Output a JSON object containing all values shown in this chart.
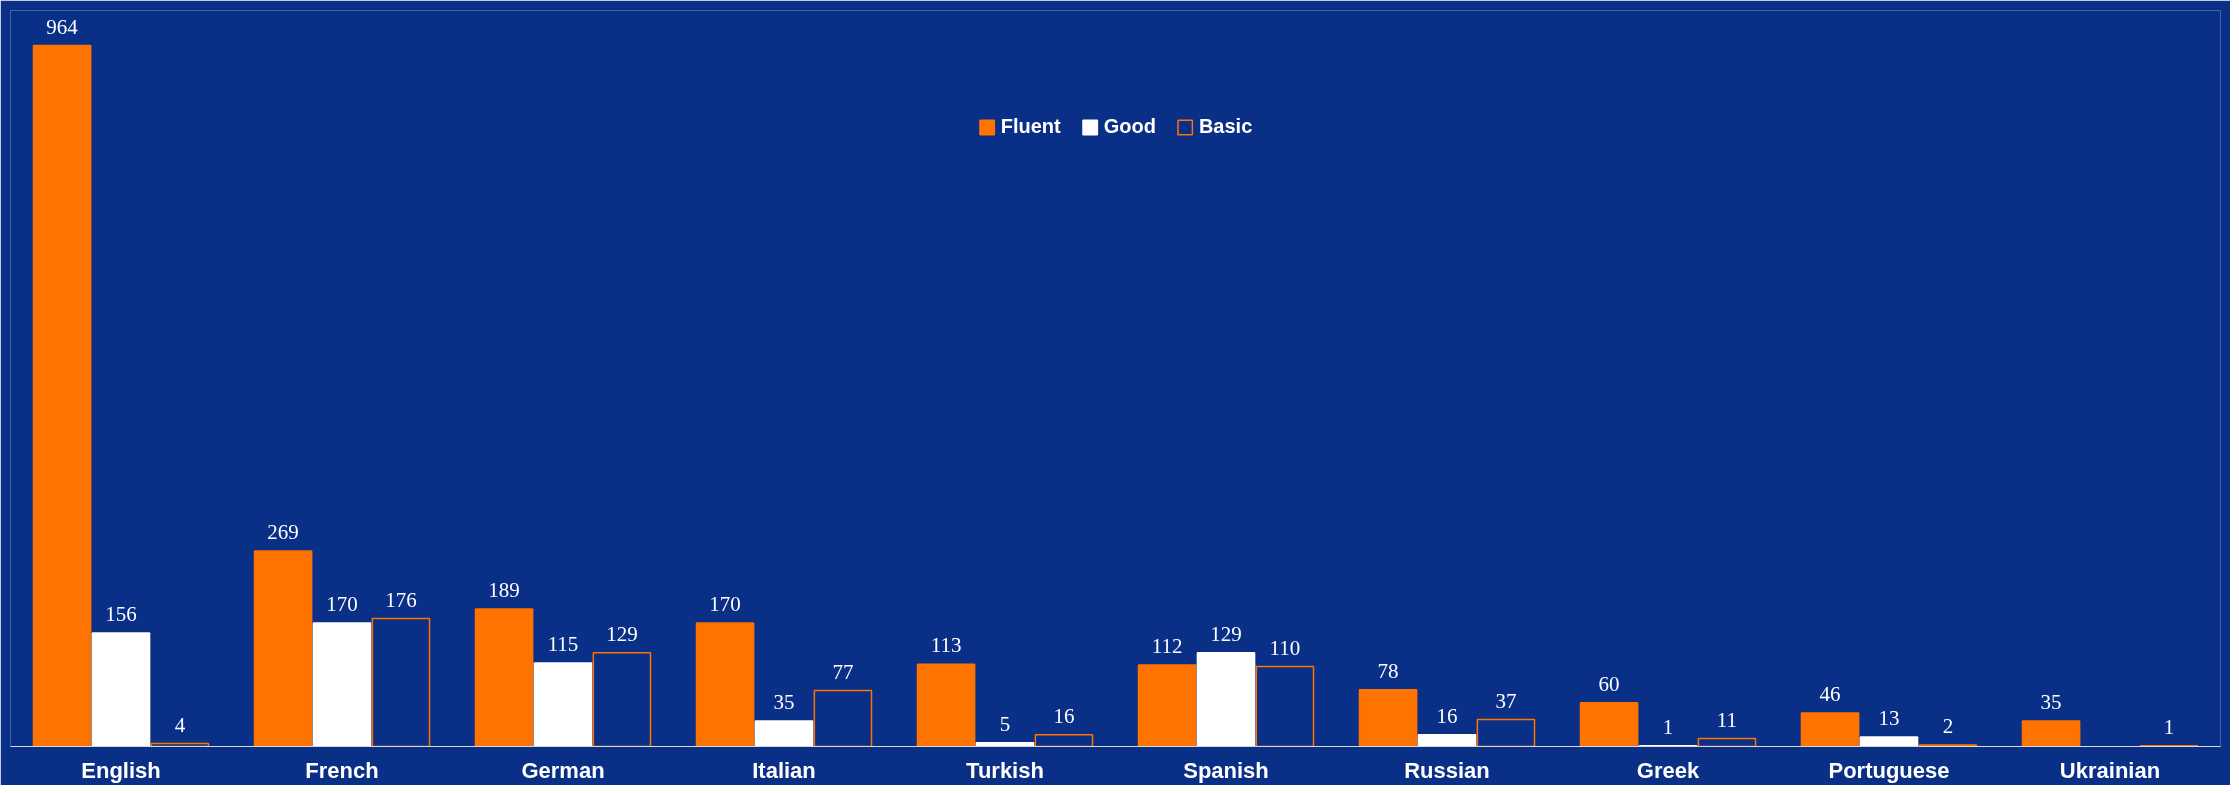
{
  "chart_data": {
    "type": "bar",
    "categories": [
      "English",
      "French",
      "German",
      "Italian",
      "Turkish",
      "Spanish",
      "Russian",
      "Greek",
      "Portuguese",
      "Ukrainian"
    ],
    "series": [
      {
        "name": "Fluent",
        "color": "#ff7300",
        "values": [
          964,
          269,
          189,
          170,
          113,
          112,
          78,
          60,
          46,
          35
        ]
      },
      {
        "name": "Good",
        "color": "#ffffff",
        "values": [
          156,
          170,
          115,
          35,
          5,
          129,
          16,
          1,
          13,
          null
        ]
      },
      {
        "name": "Basic",
        "color": "#ff7300",
        "values": [
          4,
          176,
          129,
          77,
          16,
          110,
          37,
          11,
          2,
          1
        ]
      }
    ],
    "data_labels": true,
    "legend": "top",
    "grid": false
  }
}
